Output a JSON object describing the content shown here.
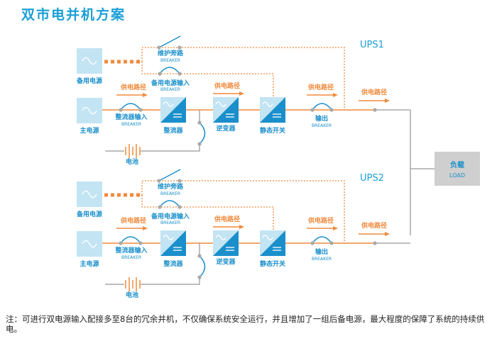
{
  "title": "双市电并机方案",
  "colors": {
    "accent_blue": "#1a9fd6",
    "box_light": "#c3e4f3",
    "box_dark": "#1a8fcb",
    "orange": "#f08a3c",
    "gray": "#a8a8a8"
  },
  "units": [
    {
      "label": "UPS1",
      "backup_source": "备用电源",
      "main_source": "主电源",
      "bypass": "维护旁路",
      "bypass_breaker": "BREAKER",
      "backup_input": "备用电源输入",
      "backup_input_breaker": "BREAKER",
      "rectifier_input": "整流器输入",
      "rectifier_input_breaker": "BREAKER",
      "rectifier": "整流器",
      "inverter": "逆变器",
      "static_switch": "静态开关",
      "output": "输出",
      "output_breaker": "BREAKER",
      "battery": "电池",
      "path_labels": [
        "供电路径",
        "供电路径",
        "供电路径",
        "供电路径"
      ]
    },
    {
      "label": "UPS2",
      "backup_source": "备用电源",
      "main_source": "主电源",
      "bypass": "维护旁路",
      "bypass_breaker": "BREAKER",
      "backup_input": "备用电源输入",
      "backup_input_breaker": "BREAKER",
      "rectifier_input": "整流器输入",
      "rectifier_input_breaker": "BREAKER",
      "rectifier": "整流器",
      "inverter": "逆变器",
      "static_switch": "静态开关",
      "output": "输出",
      "output_breaker": "BREAKER",
      "battery": "电池",
      "path_labels": [
        "供电路径",
        "供电路径",
        "供电路径",
        "供电路径"
      ]
    }
  ],
  "load": {
    "label": "负载",
    "sublabel": "LOAD"
  },
  "note": "注：可进行双电源输入配接多至8台的冗余并机，不仅确保系统安全运行，并且增加了一组后备电源，最大程度的保障了系统的持续供电。"
}
